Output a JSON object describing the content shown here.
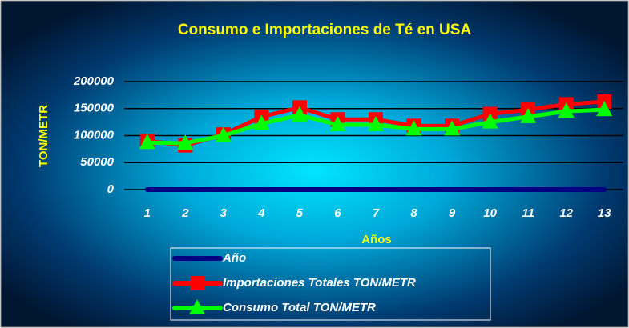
{
  "chart_data": {
    "type": "line",
    "title": "Consumo e Importaciones de Té en USA",
    "y_label": "TON/METR",
    "x_label": "Años",
    "categories": [
      "1",
      "2",
      "3",
      "4",
      "5",
      "6",
      "7",
      "8",
      "9",
      "10",
      "11",
      "12",
      "13"
    ],
    "series": [
      {
        "name": "Año",
        "color": "#000080",
        "marker": "none",
        "values": [
          1,
          2,
          3,
          4,
          5,
          6,
          7,
          8,
          9,
          10,
          11,
          12,
          13
        ]
      },
      {
        "name": "Importaciones Totales TON/METR",
        "color": "#ff0000",
        "marker": "square",
        "values": [
          90000,
          82000,
          102000,
          135000,
          152000,
          130000,
          130000,
          118000,
          118000,
          140000,
          148000,
          158000,
          163000
        ]
      },
      {
        "name": "Consumo Total TON/METR",
        "color": "#00ff00",
        "marker": "triangle",
        "values": [
          87000,
          86000,
          100000,
          122000,
          138000,
          120000,
          120000,
          112000,
          112000,
          125000,
          135000,
          145000,
          148000
        ]
      }
    ],
    "ylim": [
      0,
      200000
    ],
    "yticks": [
      0,
      50000,
      100000,
      150000,
      200000
    ],
    "grid": true
  }
}
